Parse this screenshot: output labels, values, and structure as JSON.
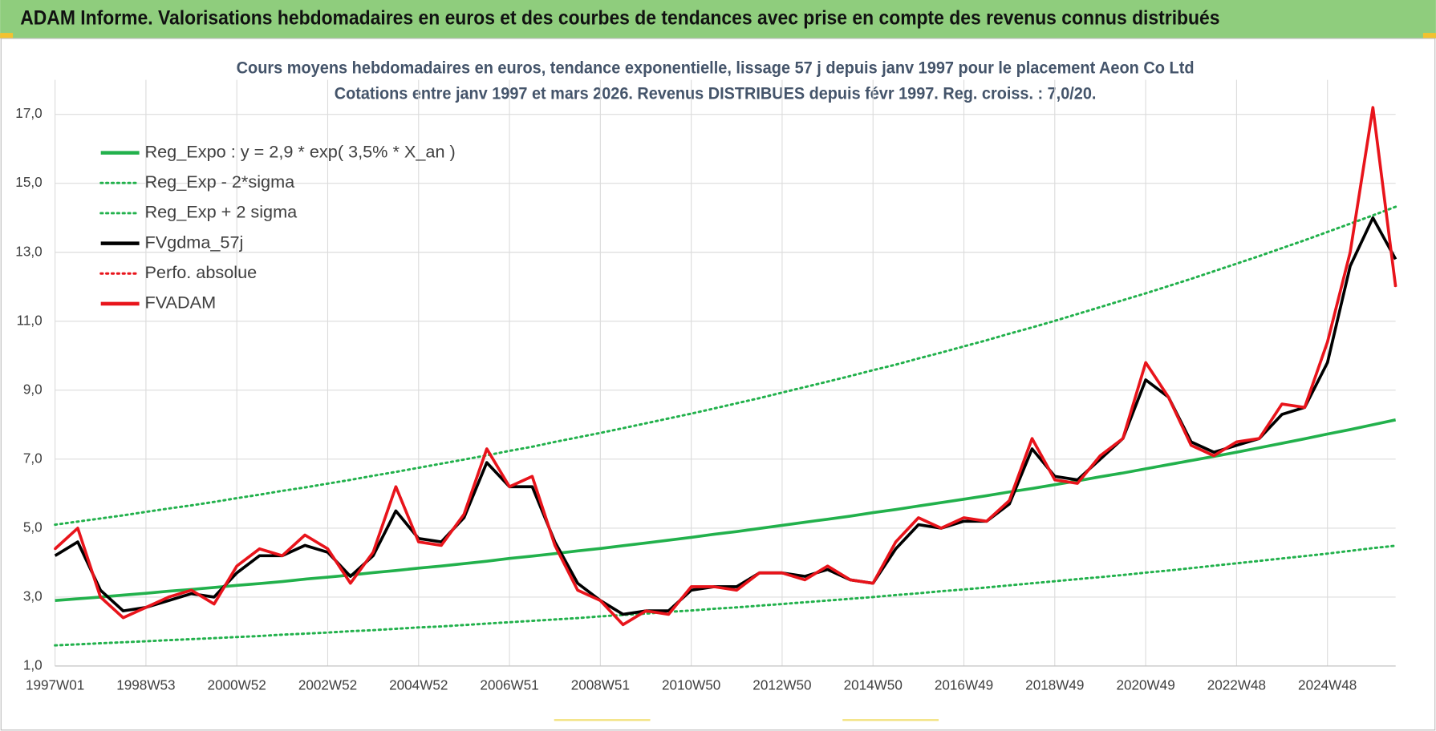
{
  "header": {
    "title": "ADAM Informe. Valorisations hebdomadaires en euros et des courbes de tendances avec prise en compte des revenus connus distribués"
  },
  "chart_data": {
    "type": "line",
    "title": "Cours moyens hebdomadaires en euros, tendance exponentielle, lissage 57 j depuis janv 1997  pour le placement Aeon Co Ltd",
    "subtitle": "Cotations entre janv 1997 et mars 2026. Revenus DISTRIBUES depuis févr 1997. Reg. croiss. : 7,0/20.",
    "categories": [
      "1997W01",
      null,
      null,
      null,
      "1998W53",
      null,
      null,
      null,
      "2000W52",
      null,
      null,
      null,
      "2002W52",
      null,
      null,
      null,
      "2004W52",
      null,
      null,
      null,
      "2006W51",
      null,
      null,
      null,
      "2008W51",
      null,
      null,
      null,
      "2010W50",
      null,
      null,
      null,
      "2012W50",
      null,
      null,
      null,
      "2014W50",
      null,
      null,
      null,
      "2016W49",
      null,
      null,
      null,
      "2018W49",
      null,
      null,
      null,
      "2020W49",
      null,
      null,
      null,
      "2022W48",
      null,
      null,
      null,
      "2024W48",
      null,
      null,
      null
    ],
    "ylim": [
      1,
      18
    ],
    "yticks": [
      {
        "value": 1,
        "label": "1,0"
      },
      {
        "value": 3,
        "label": "3,0"
      },
      {
        "value": 5,
        "label": "5,0"
      },
      {
        "value": 7,
        "label": "7,0"
      },
      {
        "value": 9,
        "label": "9,0"
      },
      {
        "value": 11,
        "label": "11,0"
      },
      {
        "value": 13,
        "label": "13,0"
      },
      {
        "value": 15,
        "label": "15,0"
      },
      {
        "value": 17,
        "label": "17,0"
      }
    ],
    "grid": true,
    "legend": "top-left",
    "series": [
      {
        "name": "Reg_Expo : y = 2,9 * exp( 3,5% *  X_an )",
        "color": "#22b14c",
        "line_style": "solid",
        "values": [
          2.9,
          2.95,
          3.0,
          3.06,
          3.11,
          3.17,
          3.22,
          3.28,
          3.34,
          3.39,
          3.45,
          3.52,
          3.58,
          3.64,
          3.71,
          3.77,
          3.84,
          3.9,
          3.97,
          4.04,
          4.12,
          4.19,
          4.26,
          4.34,
          4.41,
          4.49,
          4.57,
          4.65,
          4.73,
          4.82,
          4.9,
          4.99,
          5.08,
          5.17,
          5.26,
          5.35,
          5.45,
          5.54,
          5.64,
          5.74,
          5.84,
          5.94,
          6.05,
          6.15,
          6.26,
          6.37,
          6.49,
          6.6,
          6.72,
          6.84,
          6.96,
          7.08,
          7.2,
          7.33,
          7.46,
          7.59,
          7.73,
          7.86,
          8.0,
          8.14
        ]
      },
      {
        "name": "Reg_Exp - 2*sigma",
        "color": "#22b14c",
        "line_style": "dotted",
        "values": [
          1.6,
          1.63,
          1.66,
          1.69,
          1.72,
          1.75,
          1.78,
          1.81,
          1.84,
          1.87,
          1.91,
          1.94,
          1.97,
          2.01,
          2.04,
          2.08,
          2.12,
          2.15,
          2.19,
          2.23,
          2.27,
          2.31,
          2.35,
          2.39,
          2.44,
          2.48,
          2.52,
          2.57,
          2.61,
          2.66,
          2.7,
          2.75,
          2.8,
          2.85,
          2.9,
          2.95,
          3.0,
          3.06,
          3.11,
          3.17,
          3.22,
          3.28,
          3.34,
          3.4,
          3.46,
          3.52,
          3.58,
          3.64,
          3.71,
          3.77,
          3.84,
          3.91,
          3.98,
          4.05,
          4.12,
          4.19,
          4.26,
          4.34,
          4.42,
          4.49
        ]
      },
      {
        "name": "Reg_Exp + 2 sigma",
        "color": "#22b14c",
        "line_style": "dotted",
        "values": [
          5.1,
          5.19,
          5.28,
          5.37,
          5.47,
          5.57,
          5.66,
          5.76,
          5.87,
          5.97,
          6.08,
          6.18,
          6.29,
          6.4,
          6.52,
          6.63,
          6.75,
          6.87,
          6.99,
          7.11,
          7.24,
          7.36,
          7.5,
          7.63,
          7.76,
          7.9,
          8.04,
          8.18,
          8.32,
          8.47,
          8.62,
          8.77,
          8.93,
          9.09,
          9.25,
          9.41,
          9.58,
          9.74,
          9.92,
          10.09,
          10.27,
          10.45,
          10.64,
          10.82,
          11.01,
          11.21,
          11.41,
          11.61,
          11.81,
          12.02,
          12.23,
          12.45,
          12.67,
          12.89,
          13.12,
          13.35,
          13.59,
          13.83,
          14.07,
          14.32
        ]
      },
      {
        "name": "FVgdma_57j",
        "color": "#000000",
        "line_style": "solid",
        "values": [
          4.2,
          4.6,
          3.2,
          2.6,
          2.7,
          2.9,
          3.1,
          3.0,
          3.7,
          4.2,
          4.2,
          4.5,
          4.3,
          3.6,
          4.2,
          5.5,
          4.7,
          4.6,
          5.3,
          6.9,
          6.2,
          6.2,
          4.6,
          3.4,
          2.9,
          2.5,
          2.6,
          2.6,
          3.2,
          3.3,
          3.3,
          3.7,
          3.7,
          3.6,
          3.8,
          3.5,
          3.4,
          4.4,
          5.1,
          5.0,
          5.2,
          5.2,
          5.7,
          7.3,
          6.5,
          6.4,
          7.0,
          7.6,
          9.3,
          8.8,
          7.5,
          7.2,
          7.4,
          7.6,
          8.3,
          8.5,
          9.8,
          12.6,
          14.0,
          12.8
        ]
      },
      {
        "name": "Perfo. absolue",
        "color": "#e8141b",
        "line_style": "dotted",
        "values": [
          4.4,
          5.0,
          3.0,
          2.4,
          2.7,
          3.0,
          3.2,
          2.8,
          3.9,
          4.4,
          4.2,
          4.8,
          4.4,
          3.4,
          4.3,
          6.2,
          4.6,
          4.5,
          5.4,
          7.3,
          6.2,
          6.5,
          4.5,
          3.2,
          2.9,
          2.2,
          2.6,
          2.5,
          3.3,
          3.3,
          3.2,
          3.7,
          3.7,
          3.5,
          3.9,
          3.5,
          3.4,
          4.6,
          5.3,
          5.0,
          5.3,
          5.2,
          5.8,
          7.6,
          6.4,
          6.3,
          7.1,
          7.6,
          9.8,
          8.8,
          7.4,
          7.1,
          7.5,
          7.6,
          8.6,
          8.5,
          10.4,
          13.0,
          17.2,
          12.0
        ]
      },
      {
        "name": "FVADAM",
        "color": "#e8141b",
        "line_style": "solid",
        "values": [
          4.4,
          5.0,
          3.0,
          2.4,
          2.7,
          3.0,
          3.2,
          2.8,
          3.9,
          4.4,
          4.2,
          4.8,
          4.4,
          3.4,
          4.3,
          6.2,
          4.6,
          4.5,
          5.4,
          7.3,
          6.2,
          6.5,
          4.5,
          3.2,
          2.9,
          2.2,
          2.6,
          2.5,
          3.3,
          3.3,
          3.2,
          3.7,
          3.7,
          3.5,
          3.9,
          3.5,
          3.4,
          4.6,
          5.3,
          5.0,
          5.3,
          5.2,
          5.8,
          7.6,
          6.4,
          6.3,
          7.1,
          7.6,
          9.8,
          8.8,
          7.4,
          7.1,
          7.5,
          7.6,
          8.6,
          8.5,
          10.4,
          13.0,
          17.2,
          12.0
        ]
      }
    ]
  }
}
